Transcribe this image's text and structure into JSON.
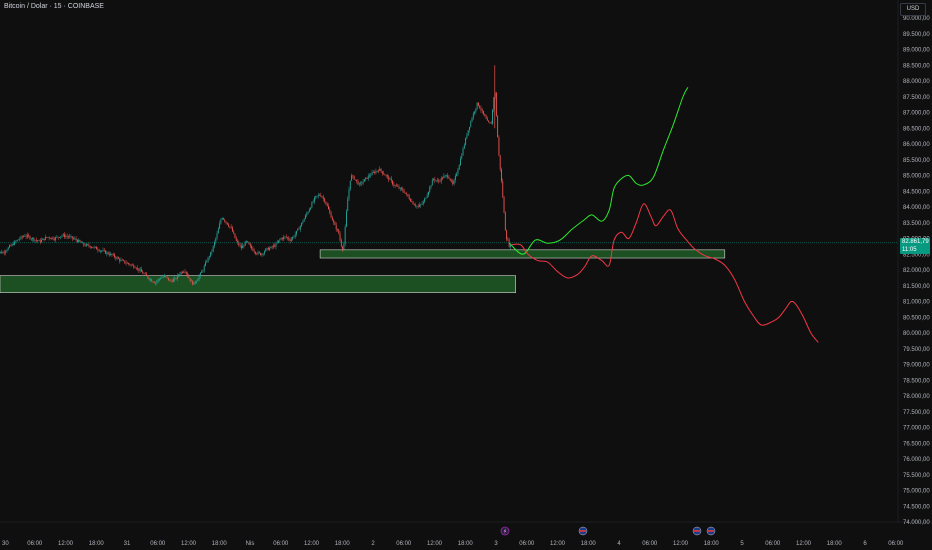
{
  "header": {
    "title": "Bitcoin / Dolar · 15 · COINBASE"
  },
  "toolbar": {
    "currency_label": "USD"
  },
  "last_price": {
    "value": "82.861,79",
    "countdown": "11:05"
  },
  "colors": {
    "up": "#26a69a",
    "down": "#ef5350",
    "zone": "#1e5b25",
    "bull_path": "#2ee82e",
    "bear_path": "#f23645",
    "bg": "#0f0f0f"
  },
  "chart_data": {
    "type": "candlestick",
    "title": "Bitcoin / Dolar · 15 · COINBASE",
    "ylim": [
      73750,
      90250
    ],
    "y_ticks": [
      {
        "v": 74000,
        "label": "74.000,00"
      },
      {
        "v": 74500,
        "label": "74.500,00"
      },
      {
        "v": 75000,
        "label": "75.000,00"
      },
      {
        "v": 75500,
        "label": "75.500,00"
      },
      {
        "v": 76000,
        "label": "76.000,00"
      },
      {
        "v": 76500,
        "label": "76.500,00"
      },
      {
        "v": 77000,
        "label": "77.000,00"
      },
      {
        "v": 77500,
        "label": "77.500,00"
      },
      {
        "v": 78000,
        "label": "78.000,00"
      },
      {
        "v": 78500,
        "label": "78.500,00"
      },
      {
        "v": 79000,
        "label": "79.000,00"
      },
      {
        "v": 79500,
        "label": "79.500,00"
      },
      {
        "v": 80000,
        "label": "80.000,00"
      },
      {
        "v": 80500,
        "label": "80.500,00"
      },
      {
        "v": 81000,
        "label": "81.000,00"
      },
      {
        "v": 81500,
        "label": "81.500,00"
      },
      {
        "v": 82000,
        "label": "82.000,00"
      },
      {
        "v": 82500,
        "label": "82.500,00"
      },
      {
        "v": 83000,
        "label": "83.000,00"
      },
      {
        "v": 83500,
        "label": "83.500,00"
      },
      {
        "v": 84000,
        "label": "84.000,00"
      },
      {
        "v": 84500,
        "label": "84.500,00"
      },
      {
        "v": 85000,
        "label": "85.000,00"
      },
      {
        "v": 85500,
        "label": "85.500,00"
      },
      {
        "v": 86000,
        "label": "86.000,00"
      },
      {
        "v": 86500,
        "label": "86.500,00"
      },
      {
        "v": 87000,
        "label": "87.000,00"
      },
      {
        "v": 87500,
        "label": "87.500,00"
      },
      {
        "v": 88000,
        "label": "88.000,00"
      },
      {
        "v": 88500,
        "label": "88.500,00"
      },
      {
        "v": 89000,
        "label": "89.000,00"
      },
      {
        "v": 89500,
        "label": "89.500,00"
      },
      {
        "v": 90000,
        "label": "90.000,00"
      }
    ],
    "x_ticks": [
      {
        "t": -0.06,
        "label": "30"
      },
      {
        "t": 0.25,
        "label": "06:00"
      },
      {
        "t": 0.5,
        "label": "12:00"
      },
      {
        "t": 0.75,
        "label": "18:00"
      },
      {
        "t": 1.0,
        "label": "31"
      },
      {
        "t": 1.25,
        "label": "06:00"
      },
      {
        "t": 1.5,
        "label": "12:00"
      },
      {
        "t": 1.75,
        "label": "18:00"
      },
      {
        "t": 2.0,
        "label": "Nis"
      },
      {
        "t": 2.25,
        "label": "06:00"
      },
      {
        "t": 2.5,
        "label": "12:00"
      },
      {
        "t": 2.75,
        "label": "18:00"
      },
      {
        "t": 3.0,
        "label": "2"
      },
      {
        "t": 3.25,
        "label": "06:00"
      },
      {
        "t": 3.5,
        "label": "12:00"
      },
      {
        "t": 3.75,
        "label": "18:00"
      },
      {
        "t": 4.0,
        "label": "3"
      },
      {
        "t": 4.25,
        "label": "06:00"
      },
      {
        "t": 4.5,
        "label": "12:00"
      },
      {
        "t": 4.75,
        "label": "18:00"
      },
      {
        "t": 5.0,
        "label": "4"
      },
      {
        "t": 5.25,
        "label": "06:00"
      },
      {
        "t": 5.5,
        "label": "12:00"
      },
      {
        "t": 5.75,
        "label": "18:00"
      },
      {
        "t": 6.0,
        "label": "5"
      },
      {
        "t": 6.25,
        "label": "06:00"
      },
      {
        "t": 6.5,
        "label": "12:00"
      },
      {
        "t": 6.75,
        "label": "18:00"
      },
      {
        "t": 7.0,
        "label": "6"
      },
      {
        "t": 7.25,
        "label": "06:00"
      }
    ],
    "price_path": [
      [
        -0.07,
        82600
      ],
      [
        0.0,
        82550
      ],
      [
        0.06,
        82750
      ],
      [
        0.12,
        82950
      ],
      [
        0.18,
        83100
      ],
      [
        0.24,
        83000
      ],
      [
        0.3,
        82900
      ],
      [
        0.36,
        83050
      ],
      [
        0.42,
        83000
      ],
      [
        0.48,
        83100
      ],
      [
        0.54,
        83050
      ],
      [
        0.6,
        82950
      ],
      [
        0.66,
        82800
      ],
      [
        0.72,
        82750
      ],
      [
        0.78,
        82650
      ],
      [
        0.84,
        82550
      ],
      [
        0.9,
        82450
      ],
      [
        0.96,
        82300
      ],
      [
        1.02,
        82200
      ],
      [
        1.08,
        82100
      ],
      [
        1.14,
        81900
      ],
      [
        1.2,
        81700
      ],
      [
        1.24,
        81600
      ],
      [
        1.28,
        81750
      ],
      [
        1.32,
        81800
      ],
      [
        1.36,
        81650
      ],
      [
        1.4,
        81700
      ],
      [
        1.44,
        81900
      ],
      [
        1.48,
        82000
      ],
      [
        1.52,
        81700
      ],
      [
        1.55,
        81550
      ],
      [
        1.58,
        81700
      ],
      [
        1.62,
        81950
      ],
      [
        1.66,
        82300
      ],
      [
        1.7,
        82600
      ],
      [
        1.74,
        83100
      ],
      [
        1.78,
        83700
      ],
      [
        1.82,
        83500
      ],
      [
        1.86,
        83300
      ],
      [
        1.9,
        82900
      ],
      [
        1.94,
        82700
      ],
      [
        1.98,
        82900
      ],
      [
        2.02,
        82700
      ],
      [
        2.06,
        82550
      ],
      [
        2.1,
        82500
      ],
      [
        2.14,
        82650
      ],
      [
        2.18,
        82700
      ],
      [
        2.22,
        82800
      ],
      [
        2.26,
        83000
      ],
      [
        2.3,
        83050
      ],
      [
        2.34,
        82950
      ],
      [
        2.38,
        83150
      ],
      [
        2.42,
        83400
      ],
      [
        2.46,
        83700
      ],
      [
        2.5,
        84000
      ],
      [
        2.54,
        84300
      ],
      [
        2.58,
        84400
      ],
      [
        2.62,
        84200
      ],
      [
        2.66,
        83800
      ],
      [
        2.7,
        83400
      ],
      [
        2.73,
        83200
      ],
      [
        2.75,
        82800
      ],
      [
        2.77,
        82650
      ],
      [
        2.8,
        84100
      ],
      [
        2.83,
        85000
      ],
      [
        2.86,
        84900
      ],
      [
        2.9,
        84700
      ],
      [
        2.94,
        84850
      ],
      [
        2.98,
        85000
      ],
      [
        3.02,
        85100
      ],
      [
        3.06,
        85200
      ],
      [
        3.1,
        85050
      ],
      [
        3.14,
        84900
      ],
      [
        3.18,
        84700
      ],
      [
        3.22,
        84600
      ],
      [
        3.26,
        84500
      ],
      [
        3.3,
        84300
      ],
      [
        3.34,
        84100
      ],
      [
        3.38,
        84000
      ],
      [
        3.42,
        84150
      ],
      [
        3.46,
        84500
      ],
      [
        3.5,
        84900
      ],
      [
        3.54,
        84800
      ],
      [
        3.58,
        84950
      ],
      [
        3.62,
        85000
      ],
      [
        3.66,
        84700
      ],
      [
        3.7,
        85200
      ],
      [
        3.74,
        85800
      ],
      [
        3.78,
        86400
      ],
      [
        3.82,
        86900
      ],
      [
        3.86,
        87300
      ],
      [
        3.9,
        87000
      ],
      [
        3.94,
        86700
      ],
      [
        3.97,
        86600
      ],
      [
        4.0,
        87800
      ],
      [
        4.03,
        85800
      ],
      [
        4.06,
        84600
      ],
      [
        4.09,
        83100
      ],
      [
        4.12,
        82750
      ]
    ],
    "zones": [
      {
        "t0": -0.07,
        "t1": 4.16,
        "y0": 81280,
        "y1": 81820
      },
      {
        "t0": 2.57,
        "t1": 5.86,
        "y0": 82380,
        "y1": 82640
      }
    ],
    "bull_path": [
      [
        4.11,
        82850
      ],
      [
        4.22,
        82500
      ],
      [
        4.32,
        82950
      ],
      [
        4.42,
        82850
      ],
      [
        4.52,
        82950
      ],
      [
        4.62,
        83300
      ],
      [
        4.72,
        83600
      ],
      [
        4.78,
        83750
      ],
      [
        4.86,
        83550
      ],
      [
        4.92,
        83900
      ],
      [
        4.96,
        84600
      ],
      [
        5.02,
        84900
      ],
      [
        5.08,
        85000
      ],
      [
        5.14,
        84750
      ],
      [
        5.2,
        84700
      ],
      [
        5.28,
        84950
      ],
      [
        5.36,
        85800
      ],
      [
        5.44,
        86600
      ],
      [
        5.52,
        87500
      ],
      [
        5.56,
        87800
      ]
    ],
    "bear_path": [
      [
        4.12,
        82800
      ],
      [
        4.2,
        82800
      ],
      [
        4.26,
        82500
      ],
      [
        4.34,
        82300
      ],
      [
        4.42,
        82250
      ],
      [
        4.5,
        81950
      ],
      [
        4.58,
        81750
      ],
      [
        4.66,
        81850
      ],
      [
        4.72,
        82100
      ],
      [
        4.78,
        82450
      ],
      [
        4.86,
        82300
      ],
      [
        4.92,
        82150
      ],
      [
        4.96,
        82950
      ],
      [
        5.02,
        83200
      ],
      [
        5.08,
        83000
      ],
      [
        5.14,
        83500
      ],
      [
        5.2,
        84100
      ],
      [
        5.26,
        83700
      ],
      [
        5.3,
        83400
      ],
      [
        5.36,
        83700
      ],
      [
        5.42,
        83900
      ],
      [
        5.48,
        83300
      ],
      [
        5.56,
        82900
      ],
      [
        5.62,
        82650
      ],
      [
        5.7,
        82450
      ],
      [
        5.78,
        82350
      ],
      [
        5.86,
        82150
      ],
      [
        5.94,
        81700
      ],
      [
        6.02,
        81000
      ],
      [
        6.1,
        80500
      ],
      [
        6.16,
        80250
      ],
      [
        6.24,
        80350
      ],
      [
        6.3,
        80500
      ],
      [
        6.36,
        80800
      ],
      [
        6.4,
        81000
      ],
      [
        6.44,
        80900
      ],
      [
        6.5,
        80500
      ],
      [
        6.56,
        80000
      ],
      [
        6.62,
        79700
      ]
    ]
  }
}
